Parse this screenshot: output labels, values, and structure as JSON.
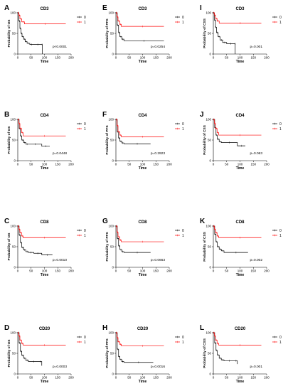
{
  "chart_data": [
    {
      "type": "line",
      "letter": "A",
      "title": "CD3",
      "xlabel": "Time",
      "ylabel": "Probability of OS",
      "pvalue": "p<0.0001",
      "xlim": [
        0,
        200
      ],
      "ylim": [
        0,
        100
      ],
      "xticks": [
        0,
        50,
        100,
        150,
        200
      ],
      "yticks": [
        0,
        50,
        100
      ],
      "series": [
        {
          "name": "0",
          "color": "#000000",
          "x": [
            0,
            4,
            8,
            12,
            16,
            22,
            28,
            35,
            45,
            60,
            90,
            92
          ],
          "y": [
            100,
            80,
            62,
            50,
            42,
            36,
            30,
            26,
            23,
            23,
            23,
            0
          ]
        },
        {
          "name": "1",
          "color": "#ff0000",
          "x": [
            0,
            4,
            8,
            15,
            25,
            180
          ],
          "y": [
            100,
            94,
            85,
            78,
            73,
            73
          ]
        }
      ]
    },
    {
      "type": "line",
      "letter": "E",
      "title": "CD3",
      "xlabel": "Time",
      "ylabel": "Probability of PFS",
      "pvalue": "p=0.0254",
      "xlim": [
        0,
        200
      ],
      "ylim": [
        0,
        100
      ],
      "xticks": [
        0,
        50,
        100,
        150,
        200
      ],
      "yticks": [
        0,
        50,
        100
      ],
      "series": [
        {
          "name": "0",
          "color": "#000000",
          "x": [
            0,
            5,
            10,
            15,
            22,
            30,
            180
          ],
          "y": [
            100,
            70,
            52,
            42,
            36,
            32,
            32
          ]
        },
        {
          "name": "1",
          "color": "#ff0000",
          "x": [
            0,
            4,
            8,
            14,
            20,
            180
          ],
          "y": [
            100,
            90,
            80,
            72,
            67,
            67
          ]
        }
      ]
    },
    {
      "type": "line",
      "letter": "I",
      "title": "CD3",
      "xlabel": "Time",
      "ylabel": "Probability of CSS",
      "pvalue": "p=0.001",
      "xlim": [
        0,
        200
      ],
      "ylim": [
        0,
        100
      ],
      "xticks": [
        0,
        50,
        100,
        150,
        200
      ],
      "yticks": [
        0,
        50,
        100
      ],
      "series": [
        {
          "name": "0",
          "color": "#000000",
          "x": [
            0,
            4,
            8,
            12,
            18,
            25,
            35,
            50,
            80,
            82
          ],
          "y": [
            100,
            82,
            65,
            52,
            42,
            34,
            28,
            25,
            25,
            0
          ]
        },
        {
          "name": "1",
          "color": "#ff0000",
          "x": [
            0,
            4,
            8,
            14,
            22,
            180
          ],
          "y": [
            100,
            94,
            86,
            80,
            75,
            75
          ]
        }
      ]
    },
    {
      "type": "line",
      "letter": "B",
      "title": "CD4",
      "xlabel": "Time",
      "ylabel": "Probability of OS",
      "pvalue": "p=0.0448",
      "xlim": [
        0,
        200
      ],
      "ylim": [
        0,
        100
      ],
      "xticks": [
        0,
        50,
        100,
        150,
        200
      ],
      "yticks": [
        0,
        50,
        100
      ],
      "series": [
        {
          "name": "0",
          "color": "#000000",
          "x": [
            0,
            5,
            10,
            15,
            22,
            30,
            40,
            90,
            120
          ],
          "y": [
            100,
            78,
            60,
            50,
            44,
            40,
            40,
            35,
            35
          ]
        },
        {
          "name": "1",
          "color": "#ff0000",
          "x": [
            0,
            4,
            8,
            14,
            20,
            180
          ],
          "y": [
            100,
            90,
            78,
            68,
            60,
            60
          ]
        }
      ]
    },
    {
      "type": "line",
      "letter": "F",
      "title": "CD4",
      "xlabel": "Time",
      "ylabel": "Probability of PFS",
      "pvalue": "p=0.2923",
      "xlim": [
        0,
        200
      ],
      "ylim": [
        0,
        100
      ],
      "xticks": [
        0,
        50,
        100,
        150,
        200
      ],
      "yticks": [
        0,
        50,
        100
      ],
      "series": [
        {
          "name": "0",
          "color": "#000000",
          "x": [
            0,
            5,
            10,
            15,
            22,
            30,
            130
          ],
          "y": [
            100,
            70,
            55,
            47,
            43,
            41,
            41
          ]
        },
        {
          "name": "1",
          "color": "#ff0000",
          "x": [
            0,
            4,
            8,
            14,
            20,
            180
          ],
          "y": [
            100,
            85,
            70,
            62,
            58,
            58
          ]
        }
      ]
    },
    {
      "type": "line",
      "letter": "J",
      "title": "CD4",
      "xlabel": "Time",
      "ylabel": "Probability of CSS",
      "pvalue": "p=0.063",
      "xlim": [
        0,
        200
      ],
      "ylim": [
        0,
        100
      ],
      "xticks": [
        0,
        50,
        100,
        150,
        200
      ],
      "yticks": [
        0,
        50,
        100
      ],
      "series": [
        {
          "name": "0",
          "color": "#000000",
          "x": [
            0,
            5,
            10,
            15,
            22,
            30,
            90,
            120
          ],
          "y": [
            100,
            80,
            62,
            52,
            46,
            44,
            36,
            36
          ]
        },
        {
          "name": "1",
          "color": "#ff0000",
          "x": [
            0,
            4,
            8,
            14,
            20,
            180
          ],
          "y": [
            100,
            90,
            78,
            68,
            62,
            62
          ]
        }
      ]
    },
    {
      "type": "line",
      "letter": "C",
      "title": "CD8",
      "xlabel": "Time",
      "ylabel": "Probability of OS",
      "pvalue": "p=0.0010",
      "xlim": [
        0,
        200
      ],
      "ylim": [
        0,
        100
      ],
      "xticks": [
        0,
        50,
        100,
        150,
        200
      ],
      "yticks": [
        0,
        50,
        100
      ],
      "series": [
        {
          "name": "0",
          "color": "#000000",
          "x": [
            0,
            5,
            10,
            15,
            22,
            30,
            40,
            60,
            90,
            130
          ],
          "y": [
            100,
            78,
            60,
            48,
            42,
            38,
            36,
            34,
            30,
            30
          ]
        },
        {
          "name": "1",
          "color": "#ff0000",
          "x": [
            0,
            4,
            8,
            14,
            20,
            180
          ],
          "y": [
            100,
            92,
            84,
            76,
            72,
            72
          ]
        }
      ]
    },
    {
      "type": "line",
      "letter": "G",
      "title": "CD8",
      "xlabel": "Time",
      "ylabel": "Probability of PFS",
      "pvalue": "p=0.0663",
      "xlim": [
        0,
        200
      ],
      "ylim": [
        0,
        100
      ],
      "xticks": [
        0,
        50,
        100,
        150,
        200
      ],
      "yticks": [
        0,
        50,
        100
      ],
      "series": [
        {
          "name": "0",
          "color": "#000000",
          "x": [
            0,
            5,
            10,
            15,
            22,
            30,
            130
          ],
          "y": [
            100,
            70,
            52,
            43,
            38,
            36,
            36
          ]
        },
        {
          "name": "1",
          "color": "#ff0000",
          "x": [
            0,
            4,
            8,
            14,
            20,
            180
          ],
          "y": [
            100,
            85,
            74,
            66,
            62,
            62
          ]
        }
      ]
    },
    {
      "type": "line",
      "letter": "K",
      "title": "CD8",
      "xlabel": "Time",
      "ylabel": "Probability of CSS",
      "pvalue": "p=0.002",
      "xlim": [
        0,
        200
      ],
      "ylim": [
        0,
        100
      ],
      "xticks": [
        0,
        50,
        100,
        150,
        200
      ],
      "yticks": [
        0,
        50,
        100
      ],
      "series": [
        {
          "name": "0",
          "color": "#000000",
          "x": [
            0,
            5,
            10,
            15,
            22,
            30,
            40,
            130
          ],
          "y": [
            100,
            80,
            62,
            50,
            44,
            40,
            36,
            36
          ]
        },
        {
          "name": "1",
          "color": "#ff0000",
          "x": [
            0,
            4,
            8,
            14,
            20,
            180
          ],
          "y": [
            100,
            92,
            84,
            76,
            72,
            72
          ]
        }
      ]
    },
    {
      "type": "line",
      "letter": "D",
      "title": "CD20",
      "xlabel": "Time",
      "ylabel": "Probability of OS",
      "pvalue": "p=0.0003",
      "xlim": [
        0,
        200
      ],
      "ylim": [
        0,
        100
      ],
      "xticks": [
        0,
        50,
        100,
        150,
        200
      ],
      "yticks": [
        0,
        50,
        100
      ],
      "series": [
        {
          "name": "0",
          "color": "#000000",
          "x": [
            0,
            5,
            10,
            15,
            22,
            30,
            40,
            80,
            90
          ],
          "y": [
            100,
            75,
            55,
            45,
            38,
            33,
            30,
            30,
            20
          ]
        },
        {
          "name": "1",
          "color": "#ff0000",
          "x": [
            0,
            4,
            8,
            14,
            20,
            180
          ],
          "y": [
            100,
            92,
            82,
            74,
            70,
            70
          ]
        }
      ]
    },
    {
      "type": "line",
      "letter": "H",
      "title": "CD20",
      "xlabel": "Time",
      "ylabel": "Probability of PFS",
      "pvalue": "p=0.0016",
      "xlim": [
        0,
        200
      ],
      "ylim": [
        0,
        100
      ],
      "xticks": [
        0,
        50,
        100,
        150,
        200
      ],
      "yticks": [
        0,
        50,
        100
      ],
      "series": [
        {
          "name": "0",
          "color": "#000000",
          "x": [
            0,
            5,
            10,
            15,
            22,
            30,
            140
          ],
          "y": [
            100,
            60,
            42,
            35,
            30,
            28,
            28
          ]
        },
        {
          "name": "1",
          "color": "#ff0000",
          "x": [
            0,
            4,
            8,
            14,
            20,
            180
          ],
          "y": [
            100,
            88,
            78,
            72,
            68,
            68
          ]
        }
      ]
    },
    {
      "type": "line",
      "letter": "L",
      "title": "CD20",
      "xlabel": "Time",
      "ylabel": "Probability of CSS",
      "pvalue": "p=0.001",
      "xlim": [
        0,
        200
      ],
      "ylim": [
        0,
        100
      ],
      "xticks": [
        0,
        50,
        100,
        150,
        200
      ],
      "yticks": [
        0,
        50,
        100
      ],
      "series": [
        {
          "name": "0",
          "color": "#000000",
          "x": [
            0,
            5,
            10,
            15,
            22,
            30,
            40,
            80,
            90
          ],
          "y": [
            100,
            75,
            57,
            46,
            38,
            34,
            32,
            32,
            24
          ]
        },
        {
          "name": "1",
          "color": "#ff0000",
          "x": [
            0,
            4,
            8,
            14,
            20,
            180
          ],
          "y": [
            100,
            92,
            82,
            74,
            70,
            70
          ]
        }
      ]
    }
  ]
}
